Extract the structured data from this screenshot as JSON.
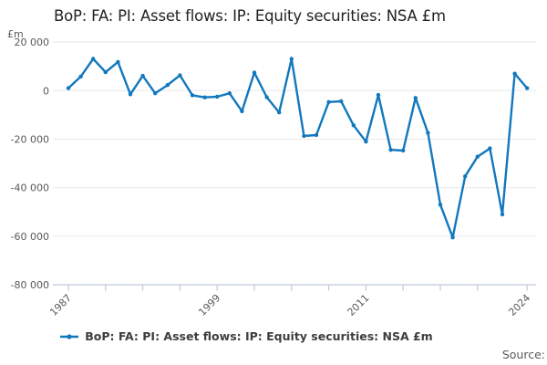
{
  "header": {
    "title": "BoP: FA: PI: Asset flows: IP: Equity securities: NSA £m"
  },
  "chart_data": {
    "type": "line",
    "title": "BoP: FA: PI: Asset flows: IP: Equity securities: NSA £m",
    "unit_label": "£m",
    "x": [
      1987,
      1988,
      1989,
      1990,
      1991,
      1992,
      1993,
      1994,
      1995,
      1996,
      1997,
      1998,
      1999,
      2000,
      2001,
      2002,
      2003,
      2004,
      2005,
      2006,
      2007,
      2008,
      2009,
      2010,
      2011,
      2012,
      2013,
      2014,
      2015,
      2016,
      2017,
      2018,
      2019,
      2020,
      2021,
      2022,
      2023,
      2024
    ],
    "series": [
      {
        "name": "BoP: FA: PI: Asset flows: IP: Equity securities: NSA £m",
        "color": "#1178be",
        "values": [
          1000,
          5800,
          13100,
          7600,
          11800,
          -1500,
          6100,
          -1100,
          2300,
          6300,
          -1900,
          -2800,
          -2500,
          -1100,
          -8500,
          7400,
          -2700,
          -9000,
          13100,
          -18700,
          -18300,
          -4700,
          -4400,
          -14300,
          -21000,
          -1800,
          -24400,
          -24700,
          -3000,
          -17400,
          -47000,
          -60500,
          -35300,
          -27200,
          -23800,
          -51000,
          7000,
          1000
        ]
      }
    ],
    "y_ticks": [
      20000,
      0,
      -20000,
      -40000,
      -60000,
      -80000
    ],
    "ylim": [
      -80000,
      20000
    ],
    "x_tick_years": [
      1987,
      1990,
      1993,
      1996,
      1999,
      2002,
      2005,
      2008,
      2011,
      2014,
      2017,
      2020,
      2024
    ],
    "x_label_years": [
      1987,
      1999,
      2011,
      2024
    ],
    "grid": true,
    "legend_position": "bottom",
    "marker": "dot"
  },
  "legend": {
    "label": "BoP: FA: PI: Asset flows: IP: Equity securities: NSA £m"
  },
  "footer": {
    "source_label": "Source:"
  },
  "colors": {
    "line": "#1178be",
    "grid": "#e9e9e9",
    "axis": "#bdcade",
    "tick_label": "#595959",
    "title": "#222222",
    "legend_text": "#3d3d3d"
  }
}
